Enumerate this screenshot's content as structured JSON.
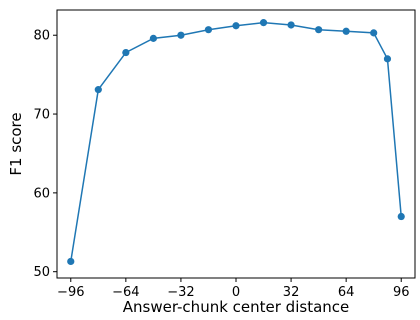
{
  "chart_data": {
    "type": "line",
    "title": "",
    "xlabel": "Answer-chunk center distance",
    "ylabel": "F1 score",
    "xlim": [
      -104,
      104
    ],
    "ylim": [
      49.2,
      83.2
    ],
    "xticks": [
      -96,
      -64,
      -32,
      0,
      32,
      64,
      96
    ],
    "yticks": [
      50,
      60,
      70,
      80
    ],
    "xtick_labels": [
      "−96",
      "−64",
      "−32",
      "0",
      "32",
      "64",
      "96"
    ],
    "ytick_labels": [
      "50",
      "60",
      "70",
      "80"
    ],
    "grid": false,
    "legend": "none",
    "series": [
      {
        "color": "#1f77b4",
        "x": [
          -96,
          -80,
          -64,
          -48,
          -32,
          -16,
          0,
          16,
          32,
          48,
          64,
          80,
          88,
          96
        ],
        "y": [
          51.3,
          73.1,
          77.8,
          79.6,
          80.0,
          80.7,
          81.2,
          81.6,
          81.3,
          80.7,
          80.5,
          80.3,
          77.0,
          57.0
        ]
      }
    ]
  }
}
